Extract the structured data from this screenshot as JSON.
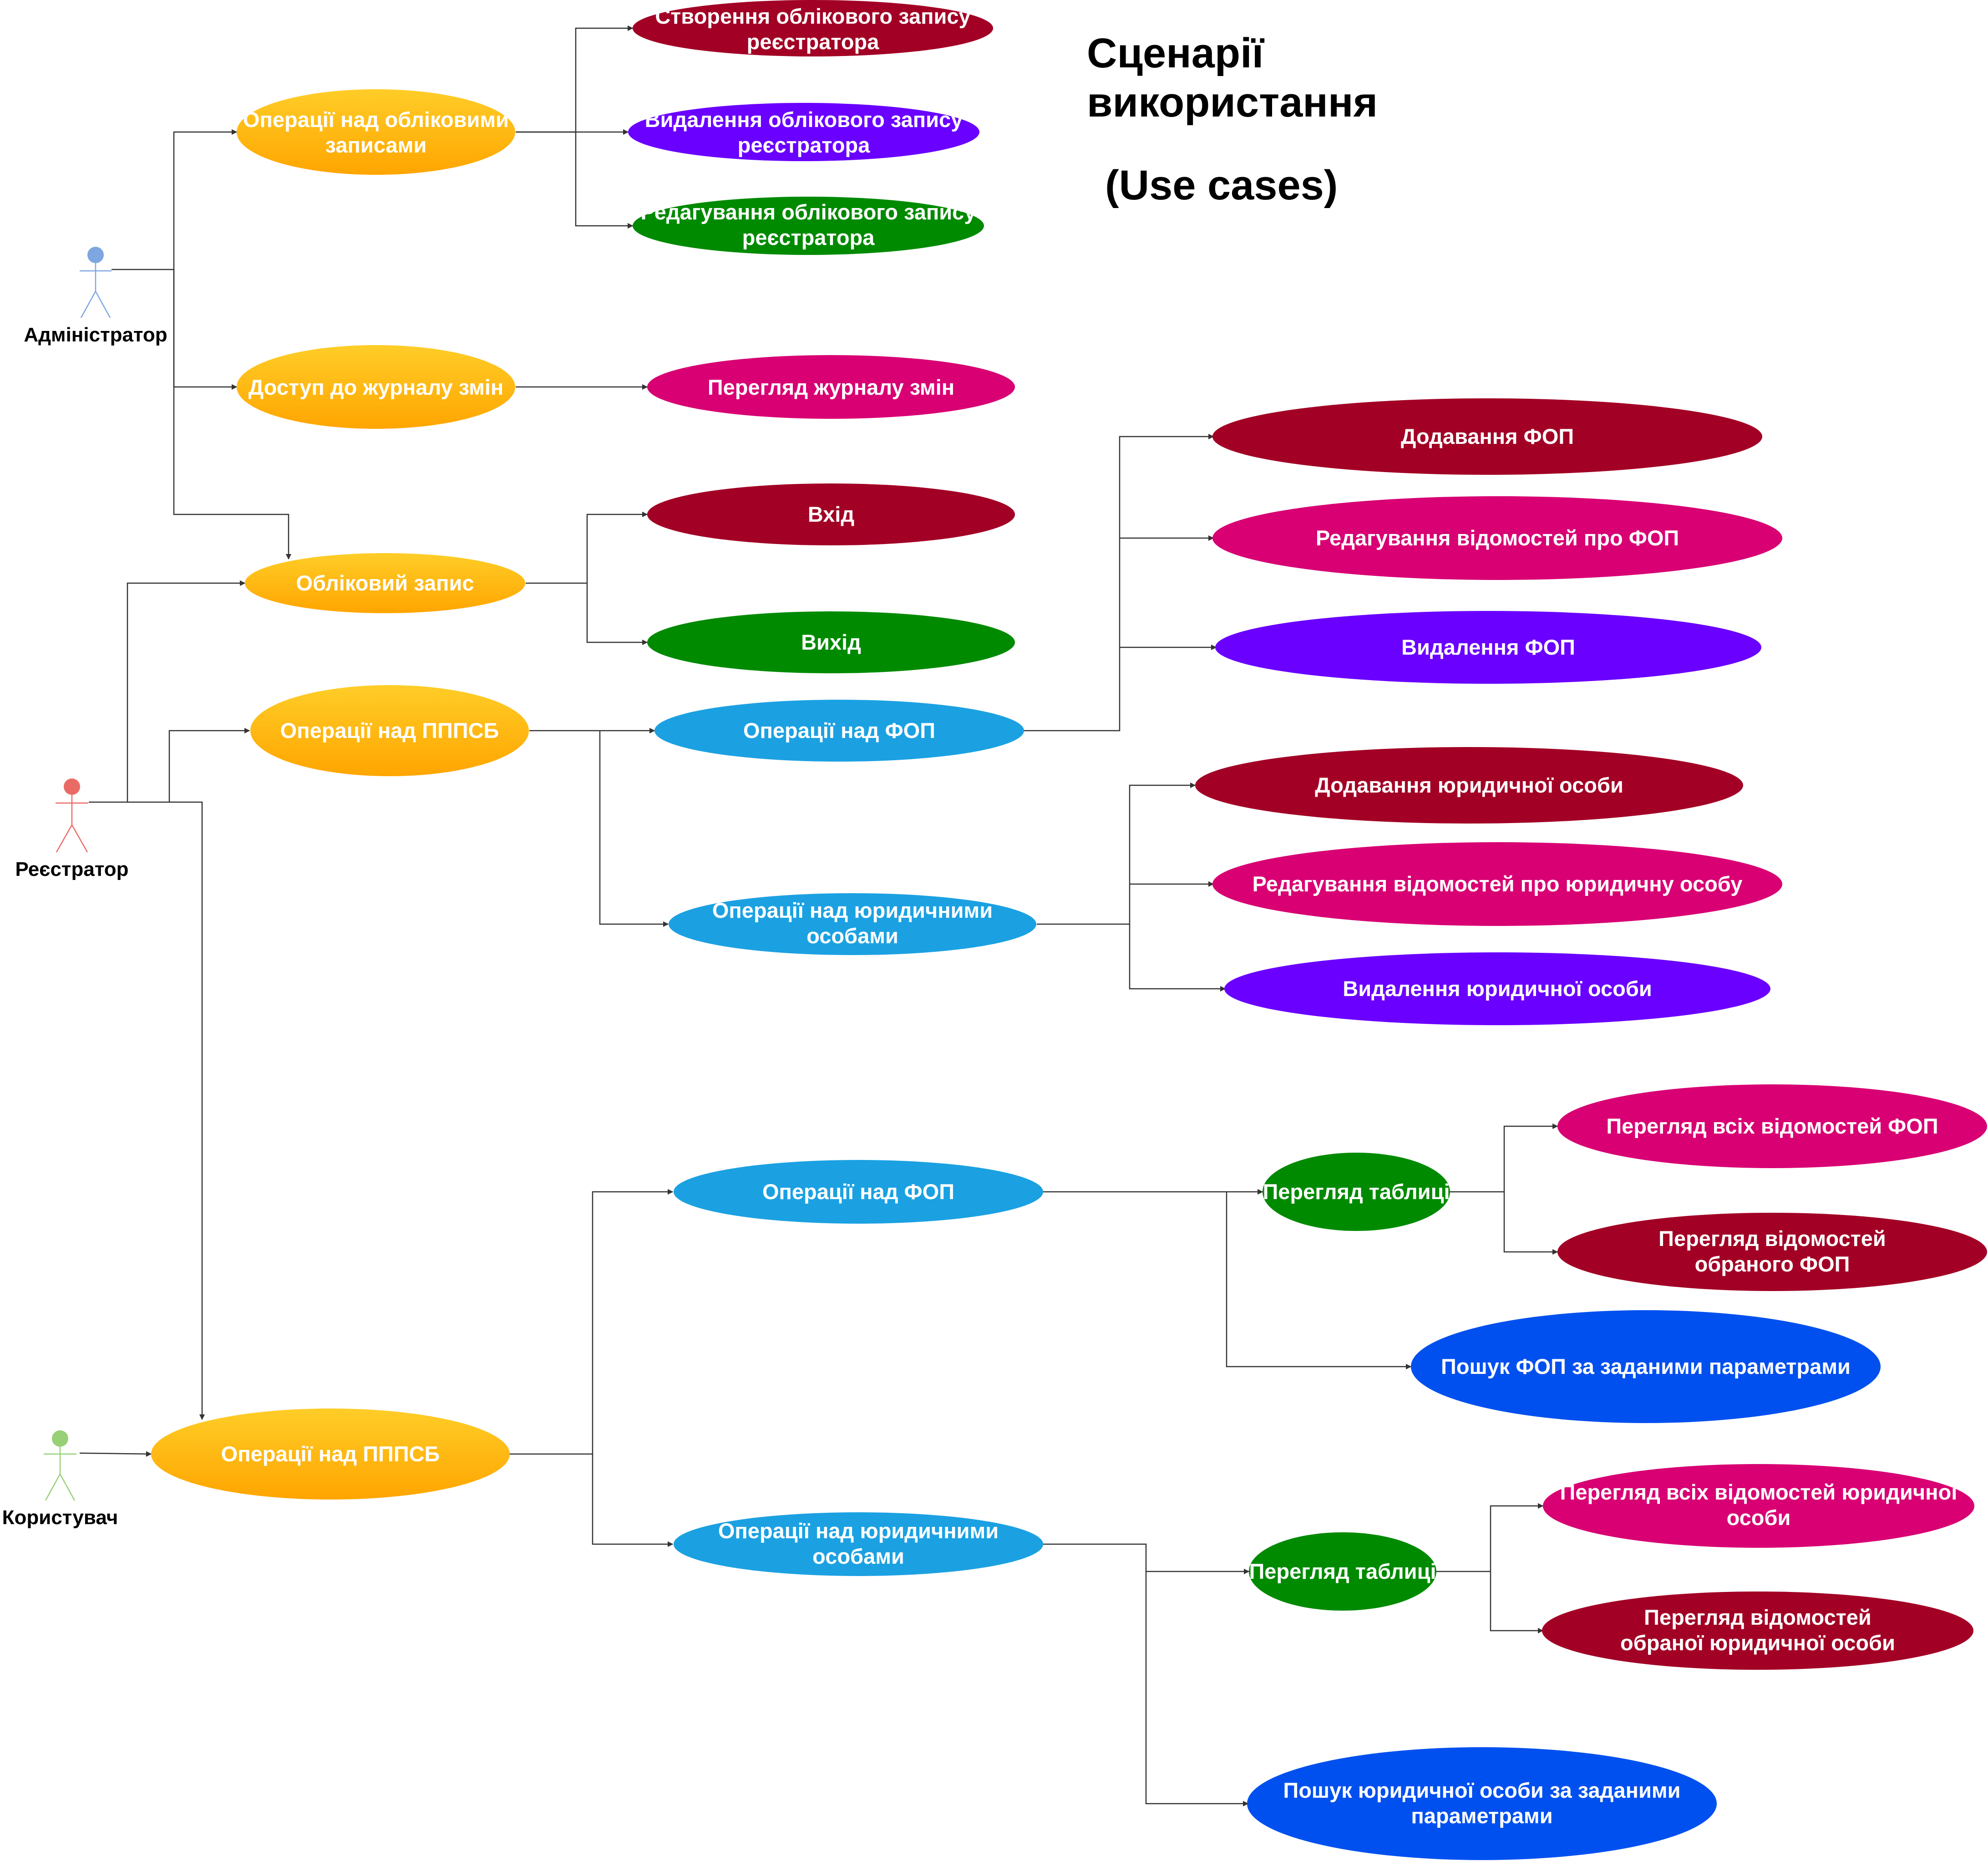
{
  "title": {
    "line1": "Сценарії",
    "line2": "використання",
    "line3": "(Use cases)"
  },
  "actors": {
    "admin": {
      "label": "Адміністратор",
      "color": "#7ea6e0"
    },
    "registrar": {
      "label": "Реєстратор",
      "color": "#ea6b66"
    },
    "user": {
      "label": "Користувач",
      "color": "#97d077"
    }
  },
  "colors": {
    "orange": "#ffb31a",
    "dark_red": "#a20025",
    "purple": "#6a00ff",
    "green": "#008a00",
    "magenta": "#d80073",
    "light_blue": "#1ba1e2",
    "blue": "#0050ef"
  },
  "use_cases": {
    "admin_account_ops": {
      "line1": "Операції над обліковими",
      "line2": "записами"
    },
    "create_registrar_account": {
      "line1": "Створення облікового запису",
      "line2": "реєстратора"
    },
    "delete_registrar_account": {
      "line1": "Видалення облікового запису",
      "line2": "реєстратора"
    },
    "edit_registrar_account": {
      "line1": "Редагування облікового запису",
      "line2": "реєстратора"
    },
    "changelog_access": {
      "line1": "Доступ до журналу змін"
    },
    "view_changelog": {
      "line1": "Перегляд журналу змін"
    },
    "account": {
      "line1": "Обліковий запис"
    },
    "login": {
      "line1": "Вхід"
    },
    "logout": {
      "line1": "Вихід"
    },
    "reg_pppsb_ops": {
      "line1": "Операції над ПППСБ"
    },
    "reg_fop_ops": {
      "line1": "Операції над ФОП"
    },
    "add_fop": {
      "line1": "Додавання ФОП"
    },
    "edit_fop": {
      "line1": "Редагування відомостей про ФОП"
    },
    "delete_fop": {
      "line1": "Видалення ФОП"
    },
    "reg_legal_ops": {
      "line1": "Операції над юридичними",
      "line2": "особами"
    },
    "add_legal": {
      "line1": "Додавання юридичної особи"
    },
    "edit_legal": {
      "line1": "Редагування відомостей про юридичну особу"
    },
    "delete_legal": {
      "line1": "Видалення юридичної особи"
    },
    "user_pppsb_ops": {
      "line1": "Операції над ПППСБ"
    },
    "user_fop_ops": {
      "line1": "Операції над ФОП"
    },
    "fop_table_view": {
      "line1": "Перегляд таблиці"
    },
    "view_all_fop": {
      "line1": "Перегляд всіх відомостей ФОП"
    },
    "view_selected_fop": {
      "line1": "Перегляд відомостей",
      "line2": "обраного ФОП"
    },
    "search_fop": {
      "line1": "Пошук ФОП за заданими параметрами"
    },
    "user_legal_ops": {
      "line1": "Операції над юридичними",
      "line2": "особами"
    },
    "legal_table_view": {
      "line1": "Перегляд таблиці"
    },
    "view_all_legal": {
      "line1": "Перегляд всіх відомостей юридичної",
      "line2": "особи"
    },
    "view_selected_legal": {
      "line1": "Перегляд відомостей",
      "line2": "обраної юридичної особи"
    },
    "search_legal": {
      "line1": "Пошук юридичної особи за заданими",
      "line2": "параметрами"
    }
  }
}
